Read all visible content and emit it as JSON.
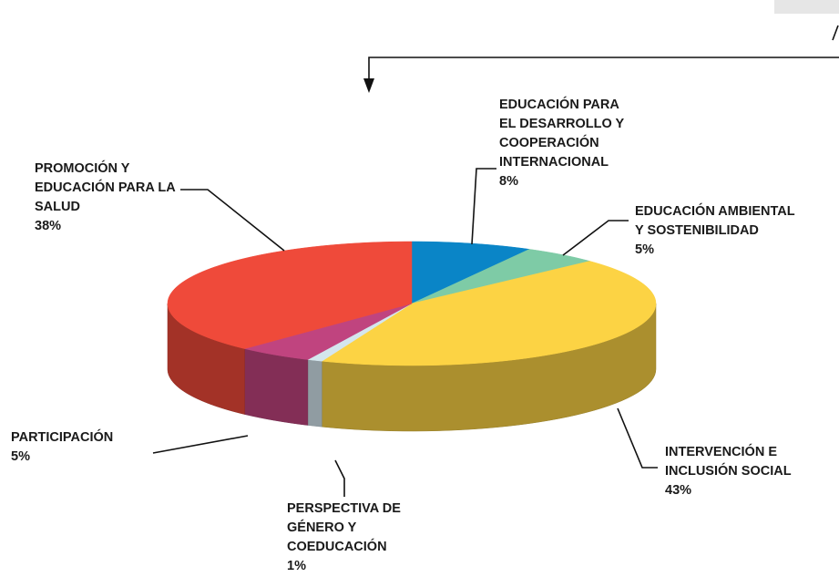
{
  "chart_data": {
    "type": "pie3d",
    "categories": [
      "EDUCACIÓN PARA\nEL DESARROLLO Y\nCOOPERACIÓN\nINTERNACIONAL",
      "EDUCACIÓN AMBIENTAL\nY SOSTENIBILIDAD",
      "INTERVENCIÓN E\nINCLUSIÓN SOCIAL",
      "PERSPECTIVA DE\nGÉNERO Y\nCOEDUCACIÓN",
      "PARTICIPACIÓN",
      "PROMOCIÓN Y\nEDUCACIÓN PARA LA\nSALUD"
    ],
    "values": [
      8,
      5,
      43,
      1,
      5,
      38
    ],
    "value_labels": [
      "8%",
      "5%",
      "43%",
      "1%",
      "5%",
      "38%"
    ],
    "colors": [
      "#0a85c7",
      "#7ecba6",
      "#fcd344",
      "#d4e6ee",
      "#c0447f",
      "#ef4a3a"
    ]
  }
}
